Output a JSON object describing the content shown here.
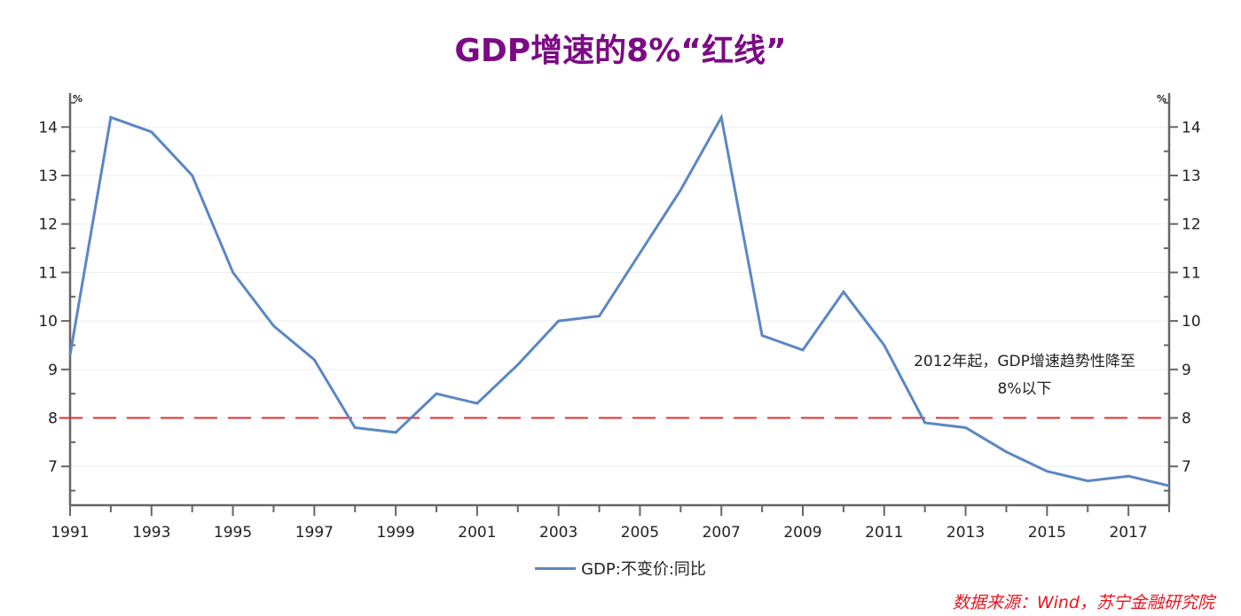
{
  "title": "GDP增速的8%“红线”",
  "legend": {
    "label": "GDP:不变价:同比"
  },
  "annotation": {
    "line1": "2012年起，GDP增速趋势性降至",
    "line2": "8%以下"
  },
  "source": "数据来源：Wind，苏宁金融研究院",
  "axes": {
    "left_unit": "%",
    "right_unit": "%"
  },
  "colors": {
    "series": "#5b87c3",
    "threshold": "#e03030",
    "title": "#7b0a84",
    "source": "#e8141e",
    "axis": "#666666",
    "grid": "#eeeeee"
  },
  "chart_data": {
    "type": "line",
    "title": "GDP增速的8%“红线”",
    "xlabel": "",
    "ylabel": "%",
    "x": [
      1991,
      1992,
      1993,
      1994,
      1995,
      1996,
      1997,
      1998,
      1999,
      2000,
      2001,
      2002,
      2003,
      2004,
      2005,
      2006,
      2007,
      2008,
      2009,
      2010,
      2011,
      2012,
      2013,
      2014,
      2015,
      2016,
      2017,
      2018
    ],
    "series": [
      {
        "name": "GDP:不变价:同比",
        "values": [
          9.3,
          14.2,
          13.9,
          13.0,
          11.0,
          9.9,
          9.2,
          7.8,
          7.7,
          8.5,
          8.3,
          9.1,
          10.0,
          10.1,
          11.4,
          12.7,
          14.2,
          9.7,
          9.4,
          10.6,
          9.5,
          7.9,
          7.8,
          7.3,
          6.9,
          6.7,
          6.8,
          6.6
        ]
      }
    ],
    "reference_lines": [
      {
        "y": 8,
        "style": "dashed",
        "color": "#e03030"
      }
    ],
    "xticks": [
      "1991",
      "1993",
      "1995",
      "1997",
      "1999",
      "2001",
      "2003",
      "2005",
      "2007",
      "2009",
      "2011",
      "2013",
      "2015",
      "2017"
    ],
    "yticks": [
      7,
      8,
      9,
      10,
      11,
      12,
      13,
      14
    ],
    "ylim": [
      6.2,
      14.7
    ],
    "xlim": [
      1991,
      2018
    ],
    "grid": true,
    "dual_y_axis": true,
    "legend_position": "bottom-center",
    "annotations": [
      {
        "text": "2012年起，GDP增速趋势性降至8%以下",
        "x": 2014.5,
        "y": 9.0
      }
    ]
  }
}
